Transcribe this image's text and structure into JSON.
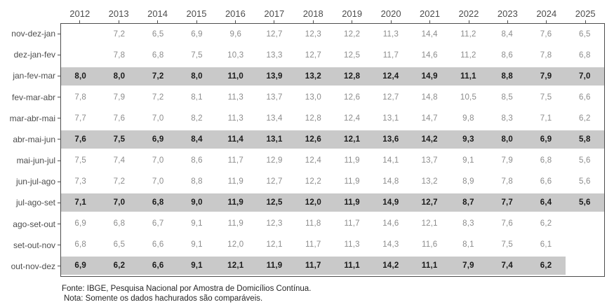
{
  "colors": {
    "highlight_band": "#c9c9c9",
    "value_text": "#8c8c8c",
    "highlight_value_text": "#1a1a1a",
    "axis_text": "#4d4d4d",
    "border": "#4d4d4d",
    "footer_text": "#262626"
  },
  "chart_data": {
    "type": "table",
    "columns": [
      "2012",
      "2013",
      "2014",
      "2015",
      "2016",
      "2017",
      "2018",
      "2019",
      "2020",
      "2021",
      "2022",
      "2023",
      "2024",
      "2025"
    ],
    "rows": [
      {
        "label": "nov-dez-jan",
        "highlighted": false,
        "highlight_span": 0,
        "values": [
          "",
          "7,2",
          "6,5",
          "6,9",
          "9,6",
          "12,7",
          "12,3",
          "12,2",
          "11,3",
          "14,4",
          "11,2",
          "8,4",
          "7,6",
          "6,5"
        ]
      },
      {
        "label": "dez-jan-fev",
        "highlighted": false,
        "highlight_span": 0,
        "values": [
          "",
          "7,8",
          "6,8",
          "7,5",
          "10,3",
          "13,3",
          "12,7",
          "12,5",
          "11,7",
          "14,6",
          "11,2",
          "8,6",
          "7,8",
          "6,8"
        ]
      },
      {
        "label": "jan-fev-mar",
        "highlighted": true,
        "highlight_span": 14,
        "values": [
          "8,0",
          "8,0",
          "7,2",
          "8,0",
          "11,0",
          "13,9",
          "13,2",
          "12,8",
          "12,4",
          "14,9",
          "11,1",
          "8,8",
          "7,9",
          "7,0"
        ]
      },
      {
        "label": "fev-mar-abr",
        "highlighted": false,
        "highlight_span": 0,
        "values": [
          "7,8",
          "7,9",
          "7,2",
          "8,1",
          "11,3",
          "13,7",
          "13,0",
          "12,6",
          "12,7",
          "14,8",
          "10,5",
          "8,5",
          "7,5",
          "6,6"
        ]
      },
      {
        "label": "mar-abr-mai",
        "highlighted": false,
        "highlight_span": 0,
        "values": [
          "7,7",
          "7,6",
          "7,0",
          "8,2",
          "11,3",
          "13,4",
          "12,8",
          "12,4",
          "13,1",
          "14,7",
          "9,8",
          "8,3",
          "7,1",
          "6,2"
        ]
      },
      {
        "label": "abr-mai-jun",
        "highlighted": true,
        "highlight_span": 14,
        "values": [
          "7,6",
          "7,5",
          "6,9",
          "8,4",
          "11,4",
          "13,1",
          "12,6",
          "12,1",
          "13,6",
          "14,2",
          "9,3",
          "8,0",
          "6,9",
          "5,8"
        ]
      },
      {
        "label": "mai-jun-jul",
        "highlighted": false,
        "highlight_span": 0,
        "values": [
          "7,5",
          "7,4",
          "7,0",
          "8,6",
          "11,7",
          "12,9",
          "12,4",
          "11,9",
          "14,1",
          "13,7",
          "9,1",
          "7,9",
          "6,8",
          "5,6"
        ]
      },
      {
        "label": "jun-jul-ago",
        "highlighted": false,
        "highlight_span": 0,
        "values": [
          "7,3",
          "7,2",
          "7,0",
          "8,8",
          "11,9",
          "12,7",
          "12,2",
          "11,9",
          "14,8",
          "13,2",
          "8,9",
          "7,8",
          "6,6",
          "5,6"
        ]
      },
      {
        "label": "jul-ago-set",
        "highlighted": true,
        "highlight_span": 14,
        "values": [
          "7,1",
          "7,0",
          "6,8",
          "9,0",
          "11,9",
          "12,5",
          "12,0",
          "11,9",
          "14,9",
          "12,7",
          "8,7",
          "7,7",
          "6,4",
          "5,6"
        ]
      },
      {
        "label": "ago-set-out",
        "highlighted": false,
        "highlight_span": 0,
        "values": [
          "6,9",
          "6,8",
          "6,7",
          "9,1",
          "11,9",
          "12,3",
          "11,8",
          "11,7",
          "14,6",
          "12,1",
          "8,3",
          "7,6",
          "6,2",
          ""
        ]
      },
      {
        "label": "set-out-nov",
        "highlighted": false,
        "highlight_span": 0,
        "values": [
          "6,8",
          "6,5",
          "6,6",
          "9,1",
          "12,0",
          "12,1",
          "11,7",
          "11,3",
          "14,3",
          "11,6",
          "8,1",
          "7,5",
          "6,1",
          ""
        ]
      },
      {
        "label": "out-nov-dez",
        "highlighted": true,
        "highlight_span": 13,
        "values": [
          "6,9",
          "6,2",
          "6,6",
          "9,1",
          "12,1",
          "11,9",
          "11,7",
          "11,1",
          "14,2",
          "11,1",
          "7,9",
          "7,4",
          "6,2",
          ""
        ]
      }
    ]
  },
  "footer": {
    "source": "Fonte: IBGE, Pesquisa Nacional por Amostra de Domicílios Contínua.",
    "note": "Nota: Somente os dados hachurados são comparáveis."
  }
}
